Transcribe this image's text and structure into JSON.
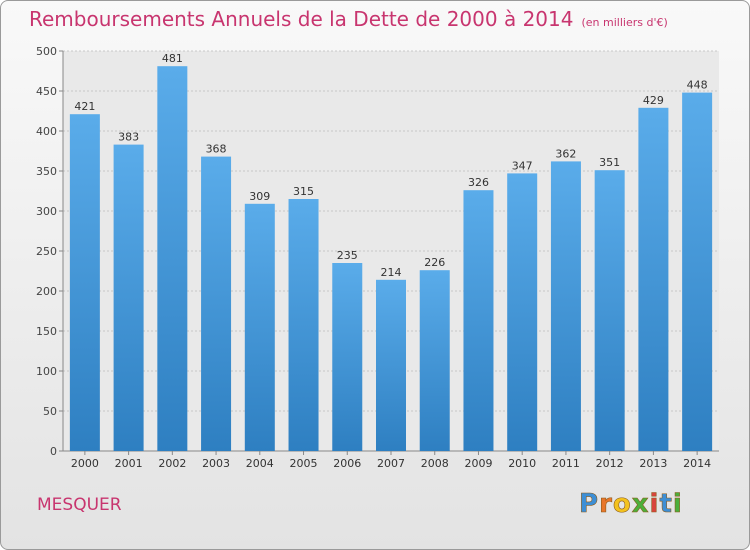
{
  "title": "Remboursements Annuels de la Dette de 2000 à 2014",
  "title_unit": "(en milliers d'€)",
  "town": "MESQUER",
  "logo": {
    "text": "Proxiti",
    "letters": [
      {
        "ch": "P",
        "color": "#3d8fd6"
      },
      {
        "ch": "r",
        "color": "#e8762b"
      },
      {
        "ch": "o",
        "color": "#f3c21e"
      },
      {
        "ch": "x",
        "color": "#4caf3a"
      },
      {
        "ch": "i",
        "color": "#d8443c"
      },
      {
        "ch": "t",
        "color": "#3d8fd6"
      },
      {
        "ch": "i",
        "color": "#4caf3a"
      }
    ]
  },
  "colors": {
    "accent": "#c8356f",
    "bar_light": "#5aacea",
    "bar_dark": "#2e7fc1"
  },
  "chart_data": {
    "type": "bar",
    "title": "Remboursements Annuels de la Dette de 2000 à 2014",
    "categories": [
      "2000",
      "2001",
      "2002",
      "2003",
      "2004",
      "2005",
      "2006",
      "2007",
      "2008",
      "2009",
      "2010",
      "2011",
      "2012",
      "2013",
      "2014"
    ],
    "values": [
      421,
      383,
      481,
      368,
      309,
      315,
      235,
      214,
      226,
      326,
      347,
      362,
      351,
      429,
      448
    ],
    "yticks": [
      0,
      50,
      100,
      150,
      200,
      250,
      300,
      350,
      400,
      450,
      500
    ],
    "ylim": [
      0,
      500
    ],
    "xlabel": "",
    "ylabel": "",
    "grid": true,
    "data_labels": true
  }
}
